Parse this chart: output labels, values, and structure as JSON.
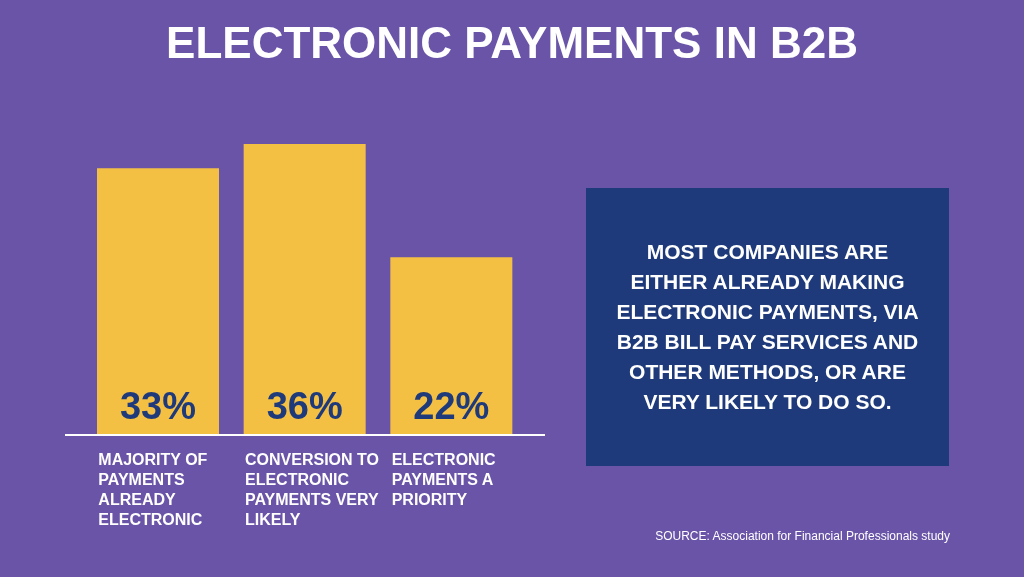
{
  "chart_data": {
    "type": "bar",
    "title": "ELECTRONIC PAYMENTS IN B2B",
    "categories": [
      "MAJORITY OF PAYMENTS ALREADY ELECTRONIC",
      "CONVERSION TO ELECTRONIC PAYMENTS VERY LIKELY",
      "ELECTRONIC PAYMENTS A PRIORITY"
    ],
    "values": [
      33,
      36,
      22
    ],
    "value_labels": [
      "33%",
      "36%",
      "22%"
    ],
    "color": "#f4c043",
    "annotations": [
      "MOST COMPANIES ARE EITHER ALREADY MAKING ELECTRONIC PAYMENTS, VIA B2B BILL PAY SERVICES AND OTHER METHODS, OR ARE VERY LIKELY TO DO SO.",
      "SOURCE: Association for Financial Professionals study"
    ]
  }
}
